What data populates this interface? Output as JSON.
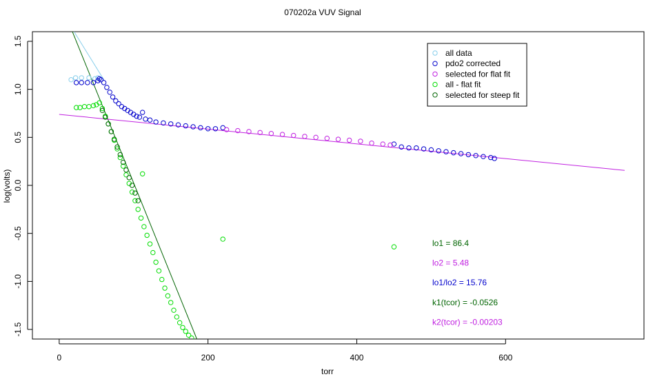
{
  "chart_data": {
    "type": "scatter",
    "title": "070202a   VUV Signal",
    "xlabel": "torr",
    "ylabel": "log(volts)",
    "xlim": [
      -36,
      786
    ],
    "ylim": [
      -1.6,
      1.6
    ],
    "x_ticks": [
      0,
      200,
      400,
      600
    ],
    "x_tick_labels": [
      "0",
      "200",
      "400",
      "600"
    ],
    "y_ticks": [
      -1.5,
      -1.0,
      -0.5,
      0.0,
      0.5,
      1.0,
      1.5
    ],
    "y_tick_labels": [
      "-1.5",
      "-1.0",
      "-0.5",
      "0.0",
      "0.5",
      "1.0",
      "1.5"
    ],
    "grid": false,
    "legend_position": "top-right",
    "legend": [
      {
        "label": "all data",
        "color": "#87ceeb"
      },
      {
        "label": "pdo2 corrected",
        "color": "#0000cc"
      },
      {
        "label": "selected for flat fit",
        "color": "#c020e0"
      },
      {
        "label": "all - flat fit",
        "color": "#00dd00"
      },
      {
        "label": "selected for steep fit",
        "color": "#006400"
      }
    ],
    "series": [
      {
        "name": "all data",
        "color": "#87ceeb",
        "points": [
          [
            16,
            1.1
          ],
          [
            22,
            1.12
          ],
          [
            30,
            1.12
          ],
          [
            40,
            1.12
          ],
          [
            48,
            1.11
          ],
          [
            52,
            1.12
          ]
        ]
      },
      {
        "name": "pdo2 corrected",
        "color": "#0000cc",
        "points": [
          [
            23,
            1.07
          ],
          [
            30,
            1.07
          ],
          [
            38,
            1.07
          ],
          [
            46,
            1.07
          ],
          [
            52,
            1.09
          ],
          [
            54,
            1.11
          ],
          [
            56,
            1.1
          ],
          [
            60,
            1.07
          ],
          [
            64,
            1.02
          ],
          [
            68,
            0.97
          ],
          [
            72,
            0.92
          ],
          [
            76,
            0.88
          ],
          [
            80,
            0.85
          ],
          [
            84,
            0.82
          ],
          [
            88,
            0.8
          ],
          [
            92,
            0.78
          ],
          [
            96,
            0.76
          ],
          [
            100,
            0.74
          ],
          [
            104,
            0.72
          ],
          [
            108,
            0.71
          ],
          [
            112,
            0.76
          ],
          [
            116,
            0.69
          ],
          [
            122,
            0.68
          ],
          [
            130,
            0.66
          ],
          [
            140,
            0.65
          ],
          [
            150,
            0.64
          ],
          [
            160,
            0.63
          ],
          [
            170,
            0.62
          ],
          [
            180,
            0.61
          ],
          [
            190,
            0.6
          ],
          [
            200,
            0.59
          ],
          [
            210,
            0.59
          ],
          [
            220,
            0.6
          ],
          [
            450,
            0.43
          ],
          [
            460,
            0.4
          ],
          [
            470,
            0.39
          ],
          [
            480,
            0.39
          ],
          [
            490,
            0.38
          ],
          [
            500,
            0.37
          ],
          [
            510,
            0.36
          ],
          [
            520,
            0.35
          ],
          [
            530,
            0.34
          ],
          [
            540,
            0.33
          ],
          [
            550,
            0.32
          ],
          [
            560,
            0.31
          ],
          [
            570,
            0.3
          ],
          [
            580,
            0.29
          ],
          [
            585,
            0.28
          ]
        ]
      },
      {
        "name": "selected for flat fit",
        "color": "#c020e0",
        "points": [
          [
            225,
            0.58
          ],
          [
            240,
            0.57
          ],
          [
            255,
            0.56
          ],
          [
            270,
            0.55
          ],
          [
            285,
            0.54
          ],
          [
            300,
            0.53
          ],
          [
            315,
            0.52
          ],
          [
            330,
            0.51
          ],
          [
            345,
            0.5
          ],
          [
            360,
            0.49
          ],
          [
            375,
            0.48
          ],
          [
            390,
            0.47
          ],
          [
            405,
            0.46
          ],
          [
            420,
            0.44
          ],
          [
            435,
            0.43
          ],
          [
            445,
            0.42
          ]
        ]
      },
      {
        "name": "all - flat fit",
        "color": "#00dd00",
        "points": [
          [
            23,
            0.81
          ],
          [
            28,
            0.81
          ],
          [
            34,
            0.82
          ],
          [
            40,
            0.82
          ],
          [
            46,
            0.83
          ],
          [
            50,
            0.84
          ],
          [
            54,
            0.86
          ],
          [
            58,
            0.8
          ],
          [
            62,
            0.72
          ],
          [
            66,
            0.64
          ],
          [
            70,
            0.56
          ],
          [
            74,
            0.47
          ],
          [
            78,
            0.38
          ],
          [
            82,
            0.29
          ],
          [
            86,
            0.2
          ],
          [
            90,
            0.11
          ],
          [
            94,
            0.02
          ],
          [
            98,
            -0.07
          ],
          [
            102,
            -0.16
          ],
          [
            106,
            -0.25
          ],
          [
            110,
            -0.34
          ],
          [
            112,
            0.12
          ],
          [
            114,
            -0.43
          ],
          [
            118,
            -0.52
          ],
          [
            122,
            -0.61
          ],
          [
            126,
            -0.7
          ],
          [
            130,
            -0.8
          ],
          [
            134,
            -0.89
          ],
          [
            138,
            -0.98
          ],
          [
            142,
            -1.07
          ],
          [
            146,
            -1.15
          ],
          [
            150,
            -1.22
          ],
          [
            154,
            -1.3
          ],
          [
            158,
            -1.37
          ],
          [
            162,
            -1.43
          ],
          [
            166,
            -1.48
          ],
          [
            170,
            -1.52
          ],
          [
            174,
            -1.56
          ],
          [
            178,
            -1.59
          ],
          [
            220,
            -0.56
          ],
          [
            450,
            -0.64
          ]
        ]
      },
      {
        "name": "selected for steep fit",
        "color": "#006400",
        "points": [
          [
            58,
            0.78
          ],
          [
            62,
            0.71
          ],
          [
            66,
            0.64
          ],
          [
            70,
            0.56
          ],
          [
            74,
            0.48
          ],
          [
            78,
            0.4
          ],
          [
            82,
            0.32
          ],
          [
            86,
            0.24
          ],
          [
            90,
            0.16
          ],
          [
            94,
            0.08
          ],
          [
            98,
            0.0
          ],
          [
            102,
            -0.08
          ],
          [
            106,
            -0.16
          ]
        ]
      }
    ],
    "fit_lines": [
      {
        "name": "steep fit",
        "color": "#006400",
        "x": [
          0,
          185
        ],
        "y": [
          1.94,
          -1.6
        ]
      },
      {
        "name": "all data trend",
        "color": "#87ceeb",
        "x": [
          20,
          60
        ],
        "y": [
          1.6,
          1.1
        ]
      },
      {
        "name": "flat fit",
        "color": "#c020e0",
        "x": [
          0,
          760
        ],
        "y": [
          0.739,
          0.156
        ]
      }
    ],
    "annotations": [
      {
        "text": "lo1 =  86.4",
        "color": "#006400"
      },
      {
        "text": "lo2 =  5.48",
        "color": "#c020e0"
      },
      {
        "text": "lo1/lo2 =  15.76",
        "color": "#0000cc"
      },
      {
        "text": "k1(tcor) =  -0.0526",
        "color": "#006400"
      },
      {
        "text": "k2(tcor) =  -0.00203",
        "color": "#c020e0"
      }
    ]
  }
}
